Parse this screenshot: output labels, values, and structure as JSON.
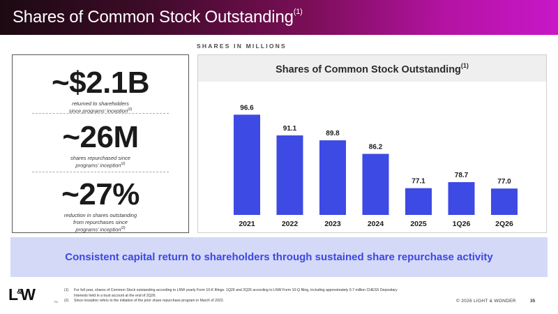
{
  "header": {
    "title": "Shares of Common Stock Outstanding",
    "title_sup": "(1)"
  },
  "subtitle": "SHARES IN MILLIONS",
  "stats": [
    {
      "value": "~$2.1B",
      "desc_lines": [
        "returned to shareholders",
        "since programs’ inception"
      ],
      "sup": "(2)"
    },
    {
      "value": "~26M",
      "desc_lines": [
        "shares repurchased since",
        "programs’ inception"
      ],
      "sup": "(2)"
    },
    {
      "value": "~27%",
      "desc_lines": [
        "reduction in shares outstanding",
        "from repurchases since",
        "programs’ inception"
      ],
      "sup": "(2)"
    }
  ],
  "chart_data": {
    "type": "bar",
    "title": "Shares of Common Stock Outstanding",
    "title_sup": "(1)",
    "categories": [
      "2021",
      "2022",
      "2023",
      "2024",
      "2025",
      "1Q26",
      "2Q26"
    ],
    "values": [
      96.6,
      91.1,
      89.8,
      86.2,
      77.1,
      78.7,
      77.0
    ],
    "value_labels": [
      "96.6",
      "91.1",
      "89.8",
      "86.2",
      "77.1",
      "78.7",
      "77.0"
    ],
    "ylim": [
      70,
      100
    ],
    "bar_color": "#3d4ae3",
    "xlabel": "",
    "ylabel": "",
    "grid": false,
    "legend": "none"
  },
  "banner": {
    "text": "Consistent capital return to shareholders through sustained share repurchase activity",
    "bg_color": "#d4d9f7",
    "text_color": "#3c48e4"
  },
  "logo": {
    "left": "L",
    "amp": "&",
    "right": "W",
    "tm": "TM"
  },
  "footnotes": [
    {
      "num": "(1)",
      "lines": [
        "For full year, shares of Common Stock outstanding according to LNW yearly Form 10-K filings. 1Q26 and 2Q26 according to LNW Form 10-Q filing, including approximately 0.7 million CHESS Depositary",
        "Interests held in a trust account at the end of 2Q26."
      ]
    },
    {
      "num": "(2)",
      "lines": [
        "Since inception refers to the initiation of the prior share repurchase program in March of 2022."
      ]
    }
  ],
  "copyright": "© 2026 LIGHT & WONDER",
  "page_number": "35"
}
